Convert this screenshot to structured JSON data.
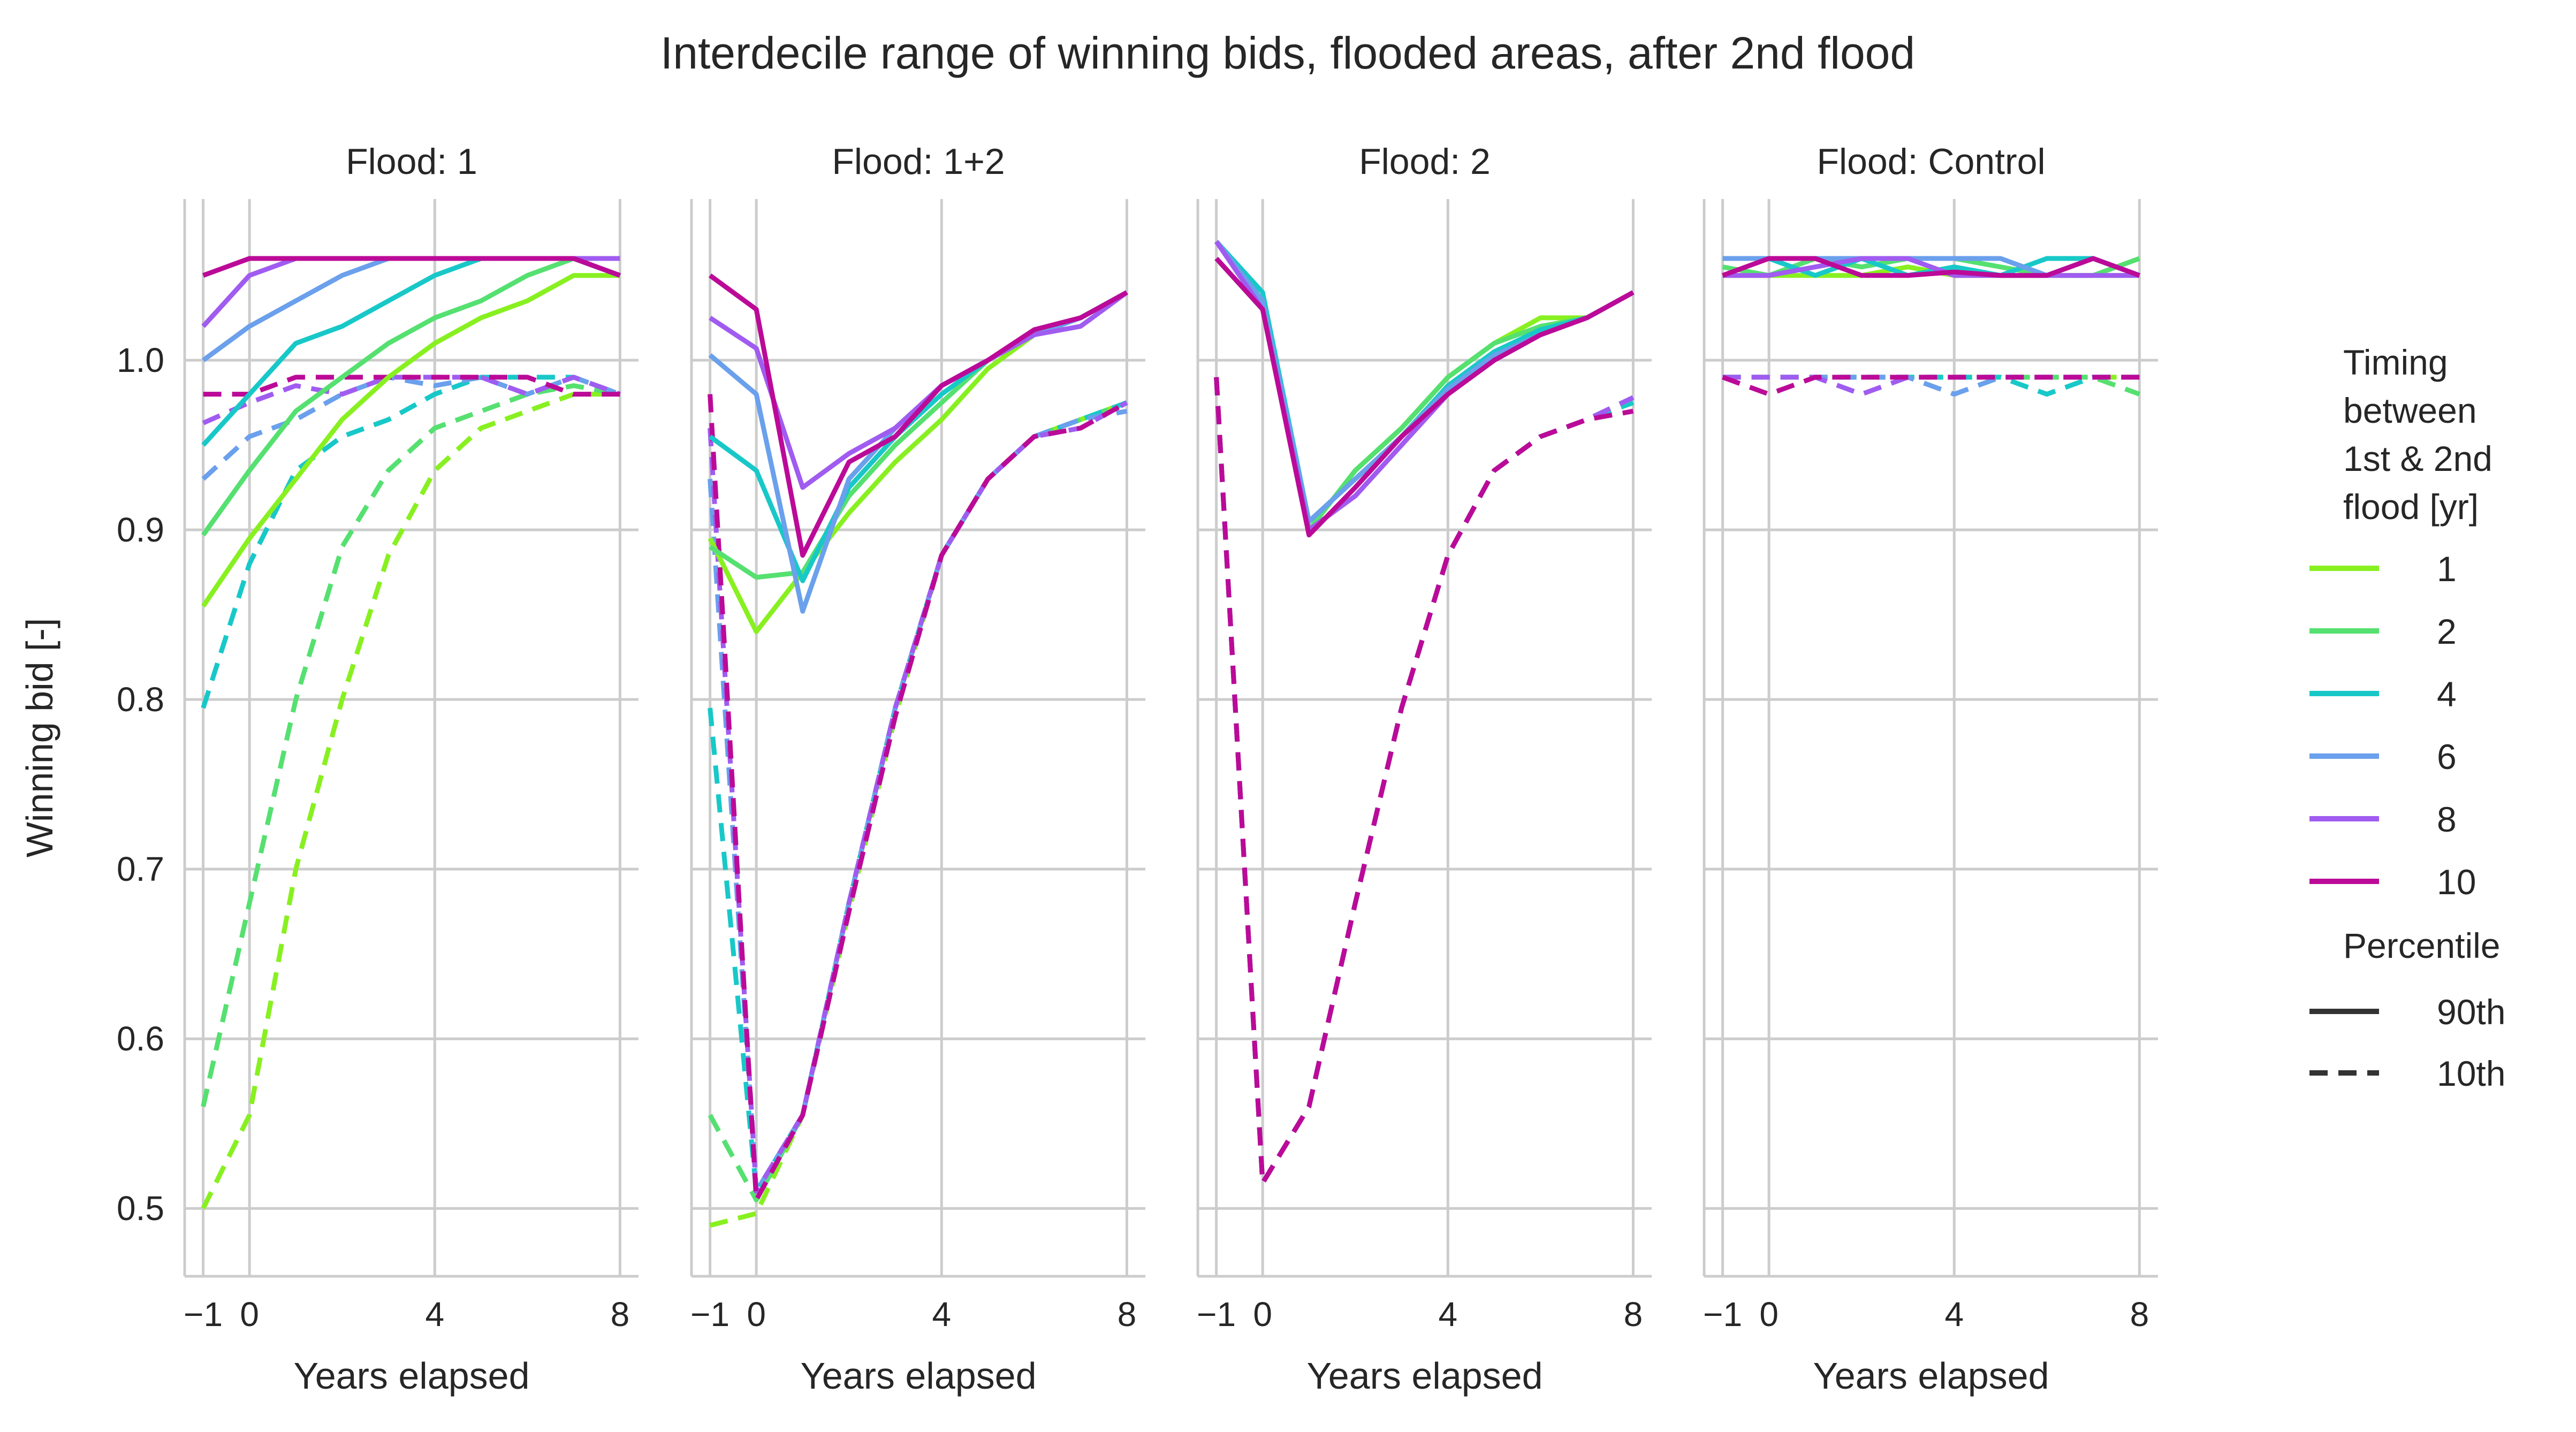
{
  "chart_data": {
    "type": "line",
    "title": "Interdecile range of winning bids, flooded areas, after 2nd flood",
    "xlabel": "Years elapsed",
    "ylabel": "Winning bid [-]",
    "x": [
      -1,
      0,
      1,
      2,
      3,
      4,
      5,
      6,
      7,
      8
    ],
    "xlim": [
      -1.4,
      8.4
    ],
    "ylim": [
      0.46,
      1.095
    ],
    "xticks": [
      -1,
      0,
      4,
      8
    ],
    "xtick_labels": [
      "−1",
      "0",
      "4",
      "8"
    ],
    "yticks": [
      0.5,
      0.6,
      0.7,
      0.8,
      0.9,
      1.0
    ],
    "ytick_labels": [
      "0.5",
      "0.6",
      "0.7",
      "0.8",
      "0.9",
      "1.0"
    ],
    "grid": true,
    "legend": {
      "placement": "right",
      "hue_title": "Timing\nbetween\n1st & 2nd\nflood [yr]",
      "hue_entries": [
        {
          "label": "1",
          "color": "#88f020"
        },
        {
          "label": "2",
          "color": "#55e070"
        },
        {
          "label": "4",
          "color": "#18c8c8"
        },
        {
          "label": "6",
          "color": "#6aa0ec"
        },
        {
          "label": "8",
          "color": "#a05cf0"
        },
        {
          "label": "10",
          "color": "#bb0a98"
        }
      ],
      "style_title": "Percentile",
      "style_entries": [
        {
          "label": "90th",
          "dash": "solid"
        },
        {
          "label": "10th",
          "dash": "dashed"
        }
      ]
    },
    "panels": [
      {
        "title": "Flood: 1",
        "series": [
          {
            "timing": "1",
            "percentile": "90th",
            "values": [
              0.855,
              0.895,
              0.93,
              0.965,
              0.99,
              1.01,
              1.025,
              1.035,
              1.05,
              1.05
            ]
          },
          {
            "timing": "2",
            "percentile": "90th",
            "values": [
              0.897,
              0.935,
              0.97,
              0.99,
              1.01,
              1.025,
              1.035,
              1.05,
              1.06,
              1.05
            ]
          },
          {
            "timing": "4",
            "percentile": "90th",
            "values": [
              0.95,
              0.98,
              1.01,
              1.02,
              1.035,
              1.05,
              1.06,
              1.06,
              1.06,
              1.05
            ]
          },
          {
            "timing": "6",
            "percentile": "90th",
            "values": [
              1.0,
              1.02,
              1.035,
              1.05,
              1.06,
              1.06,
              1.06,
              1.06,
              1.06,
              1.05
            ]
          },
          {
            "timing": "8",
            "percentile": "90th",
            "values": [
              1.02,
              1.05,
              1.06,
              1.06,
              1.06,
              1.06,
              1.06,
              1.06,
              1.06,
              1.06
            ]
          },
          {
            "timing": "10",
            "percentile": "90th",
            "values": [
              1.05,
              1.06,
              1.06,
              1.06,
              1.06,
              1.06,
              1.06,
              1.06,
              1.06,
              1.05
            ]
          },
          {
            "timing": "1",
            "percentile": "10th",
            "values": [
              0.5,
              0.555,
              0.7,
              0.8,
              0.885,
              0.935,
              0.96,
              0.97,
              0.98,
              0.98
            ]
          },
          {
            "timing": "2",
            "percentile": "10th",
            "values": [
              0.56,
              0.68,
              0.8,
              0.89,
              0.935,
              0.96,
              0.97,
              0.98,
              0.985,
              0.98
            ]
          },
          {
            "timing": "4",
            "percentile": "10th",
            "values": [
              0.795,
              0.88,
              0.935,
              0.955,
              0.965,
              0.98,
              0.99,
              0.99,
              0.99,
              0.98
            ]
          },
          {
            "timing": "6",
            "percentile": "10th",
            "values": [
              0.93,
              0.955,
              0.965,
              0.98,
              0.99,
              0.985,
              0.99,
              0.98,
              0.99,
              0.98
            ]
          },
          {
            "timing": "8",
            "percentile": "10th",
            "values": [
              0.963,
              0.975,
              0.985,
              0.98,
              0.99,
              0.99,
              0.99,
              0.98,
              0.99,
              0.98
            ]
          },
          {
            "timing": "10",
            "percentile": "10th",
            "values": [
              0.98,
              0.98,
              0.99,
              0.99,
              0.99,
              0.99,
              0.99,
              0.99,
              0.98,
              0.98
            ]
          }
        ]
      },
      {
        "title": "Flood: 1+2",
        "series": [
          {
            "timing": "1",
            "percentile": "90th",
            "values": [
              0.895,
              0.84,
              0.875,
              0.91,
              0.94,
              0.965,
              0.995,
              1.015,
              1.025,
              1.04
            ]
          },
          {
            "timing": "2",
            "percentile": "90th",
            "values": [
              0.89,
              0.872,
              0.875,
              0.92,
              0.95,
              0.975,
              1.0,
              1.015,
              1.025,
              1.04
            ]
          },
          {
            "timing": "4",
            "percentile": "90th",
            "values": [
              0.955,
              0.935,
              0.87,
              0.925,
              0.955,
              0.98,
              1.0,
              1.015,
              1.025,
              1.04
            ]
          },
          {
            "timing": "6",
            "percentile": "90th",
            "values": [
              1.003,
              0.98,
              0.852,
              0.93,
              0.96,
              0.985,
              1.0,
              1.015,
              1.025,
              1.04
            ]
          },
          {
            "timing": "8",
            "percentile": "90th",
            "values": [
              1.025,
              1.007,
              0.925,
              0.945,
              0.96,
              0.985,
              1.0,
              1.015,
              1.02,
              1.04
            ]
          },
          {
            "timing": "10",
            "percentile": "90th",
            "values": [
              1.05,
              1.03,
              0.885,
              0.94,
              0.955,
              0.985,
              1.0,
              1.018,
              1.025,
              1.04
            ]
          },
          {
            "timing": "1",
            "percentile": "10th",
            "values": [
              0.49,
              0.497,
              0.555,
              0.675,
              0.79,
              0.885,
              0.93,
              0.955,
              0.965,
              0.975
            ]
          },
          {
            "timing": "2",
            "percentile": "10th",
            "values": [
              0.555,
              0.505,
              0.555,
              0.68,
              0.795,
              0.885,
              0.93,
              0.955,
              0.965,
              0.975
            ]
          },
          {
            "timing": "4",
            "percentile": "10th",
            "values": [
              0.795,
              0.51,
              0.555,
              0.68,
              0.795,
              0.885,
              0.93,
              0.955,
              0.965,
              0.975
            ]
          },
          {
            "timing": "6",
            "percentile": "10th",
            "values": [
              0.93,
              0.51,
              0.555,
              0.68,
              0.795,
              0.885,
              0.93,
              0.955,
              0.965,
              0.97
            ]
          },
          {
            "timing": "8",
            "percentile": "10th",
            "values": [
              0.96,
              0.51,
              0.555,
              0.68,
              0.795,
              0.885,
              0.93,
              0.955,
              0.96,
              0.975
            ]
          },
          {
            "timing": "10",
            "percentile": "10th",
            "values": [
              0.98,
              0.505,
              0.555,
              0.675,
              0.79,
              0.885,
              0.93,
              0.955,
              0.96,
              0.975
            ]
          }
        ]
      },
      {
        "title": "Flood: 2",
        "series": [
          {
            "timing": "1",
            "percentile": "90th",
            "values": [
              1.06,
              1.03,
              0.9,
              0.935,
              0.96,
              0.99,
              1.01,
              1.025,
              1.025,
              1.04
            ]
          },
          {
            "timing": "2",
            "percentile": "90th",
            "values": [
              1.06,
              1.03,
              0.9,
              0.935,
              0.96,
              0.99,
              1.01,
              1.02,
              1.025,
              1.04
            ]
          },
          {
            "timing": "4",
            "percentile": "90th",
            "values": [
              1.07,
              1.04,
              0.905,
              0.93,
              0.955,
              0.985,
              1.005,
              1.018,
              1.025,
              1.04
            ]
          },
          {
            "timing": "6",
            "percentile": "90th",
            "values": [
              1.07,
              1.035,
              0.905,
              0.93,
              0.955,
              0.983,
              1.003,
              1.015,
              1.025,
              1.04
            ]
          },
          {
            "timing": "8",
            "percentile": "90th",
            "values": [
              1.07,
              1.03,
              0.9,
              0.92,
              0.95,
              0.98,
              1.0,
              1.015,
              1.025,
              1.04
            ]
          },
          {
            "timing": "10",
            "percentile": "90th",
            "values": [
              1.06,
              1.03,
              0.897,
              0.925,
              0.955,
              0.98,
              1.0,
              1.015,
              1.025,
              1.04
            ]
          },
          {
            "timing": "1",
            "percentile": "10th",
            "values": [
              0.99,
              0.515,
              0.56,
              0.68,
              0.795,
              0.885,
              0.935,
              0.955,
              0.965,
              0.975
            ]
          },
          {
            "timing": "2",
            "percentile": "10th",
            "values": [
              0.99,
              0.515,
              0.56,
              0.68,
              0.795,
              0.885,
              0.935,
              0.955,
              0.965,
              0.975
            ]
          },
          {
            "timing": "4",
            "percentile": "10th",
            "values": [
              0.99,
              0.515,
              0.56,
              0.68,
              0.795,
              0.885,
              0.935,
              0.955,
              0.965,
              0.975
            ]
          },
          {
            "timing": "6",
            "percentile": "10th",
            "values": [
              0.99,
              0.515,
              0.56,
              0.68,
              0.795,
              0.885,
              0.935,
              0.955,
              0.965,
              0.978
            ]
          },
          {
            "timing": "8",
            "percentile": "10th",
            "values": [
              0.99,
              0.515,
              0.56,
              0.68,
              0.795,
              0.885,
              0.935,
              0.955,
              0.965,
              0.978
            ]
          },
          {
            "timing": "10",
            "percentile": "10th",
            "values": [
              0.99,
              0.515,
              0.56,
              0.68,
              0.795,
              0.885,
              0.935,
              0.955,
              0.965,
              0.97
            ]
          }
        ]
      },
      {
        "title": "Flood: Control",
        "series": [
          {
            "timing": "1",
            "percentile": "90th",
            "values": [
              1.05,
              1.05,
              1.05,
              1.05,
              1.055,
              1.05,
              1.05,
              1.05,
              1.05,
              1.05
            ]
          },
          {
            "timing": "2",
            "percentile": "90th",
            "values": [
              1.055,
              1.05,
              1.06,
              1.055,
              1.06,
              1.06,
              1.055,
              1.05,
              1.05,
              1.06
            ]
          },
          {
            "timing": "4",
            "percentile": "90th",
            "values": [
              1.06,
              1.06,
              1.05,
              1.06,
              1.05,
              1.055,
              1.05,
              1.06,
              1.06,
              1.05
            ]
          },
          {
            "timing": "6",
            "percentile": "90th",
            "values": [
              1.06,
              1.06,
              1.06,
              1.06,
              1.06,
              1.06,
              1.06,
              1.05,
              1.06,
              1.05
            ]
          },
          {
            "timing": "8",
            "percentile": "90th",
            "values": [
              1.05,
              1.05,
              1.055,
              1.06,
              1.06,
              1.05,
              1.05,
              1.05,
              1.05,
              1.05
            ]
          },
          {
            "timing": "10",
            "percentile": "90th",
            "values": [
              1.05,
              1.06,
              1.06,
              1.05,
              1.05,
              1.052,
              1.05,
              1.05,
              1.06,
              1.05
            ]
          },
          {
            "timing": "1",
            "percentile": "10th",
            "values": [
              0.99,
              0.99,
              0.99,
              0.99,
              0.99,
              0.99,
              0.99,
              0.99,
              0.99,
              0.99
            ]
          },
          {
            "timing": "2",
            "percentile": "10th",
            "values": [
              0.99,
              0.99,
              0.99,
              0.99,
              0.99,
              0.99,
              0.99,
              0.99,
              0.99,
              0.98
            ]
          },
          {
            "timing": "4",
            "percentile": "10th",
            "values": [
              0.99,
              0.99,
              0.99,
              0.99,
              0.99,
              0.99,
              0.99,
              0.98,
              0.99,
              0.99
            ]
          },
          {
            "timing": "6",
            "percentile": "10th",
            "values": [
              0.99,
              0.99,
              0.99,
              0.99,
              0.99,
              0.98,
              0.99,
              0.99,
              0.99,
              0.99
            ]
          },
          {
            "timing": "8",
            "percentile": "10th",
            "values": [
              0.99,
              0.99,
              0.99,
              0.98,
              0.99,
              0.99,
              0.99,
              0.99,
              0.99,
              0.99
            ]
          },
          {
            "timing": "10",
            "percentile": "10th",
            "values": [
              0.99,
              0.98,
              0.99,
              0.99,
              0.99,
              0.99,
              0.99,
              0.99,
              0.99,
              0.99
            ]
          }
        ]
      }
    ]
  }
}
